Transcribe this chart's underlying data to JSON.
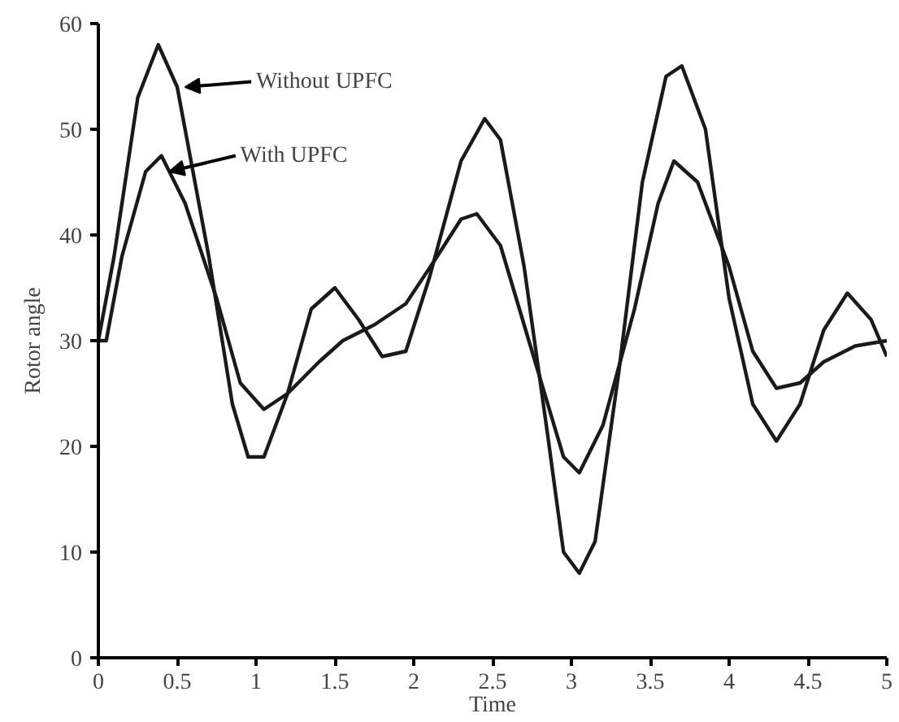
{
  "chart_data": {
    "type": "line",
    "xlabel": "Time",
    "ylabel": "Rotor angle",
    "xlim": [
      0,
      5
    ],
    "ylim": [
      0,
      60
    ],
    "xticks": [
      0,
      0.5,
      1,
      1.5,
      2,
      2.5,
      3,
      3.5,
      4,
      4.5,
      5
    ],
    "yticks": [
      0,
      10,
      20,
      30,
      40,
      50,
      60
    ],
    "line_style": "solid",
    "series": [
      {
        "color": "#1a1a1a",
        "x": [
          0,
          0.1,
          0.25,
          0.38,
          0.5,
          0.7,
          0.85,
          0.95,
          1.05,
          1.2,
          1.35,
          1.5,
          1.65,
          1.8,
          1.95,
          2.1,
          2.3,
          2.45,
          2.55,
          2.7,
          2.85,
          2.95,
          3.05,
          3.15,
          3.3,
          3.45,
          3.6,
          3.7,
          3.85,
          4.0,
          4.15,
          4.3,
          4.45,
          4.6,
          4.75,
          4.9,
          5
        ],
        "values": [
          30,
          38,
          53,
          58,
          54,
          38,
          24,
          19,
          19,
          25,
          33,
          35,
          32,
          28.5,
          29,
          36,
          47,
          51,
          49,
          37,
          21,
          10,
          8,
          11,
          27,
          45,
          55,
          56,
          50,
          34,
          24,
          20.5,
          24,
          31,
          34.5,
          32,
          28.5
        ]
      },
      {
        "color": "#1a1a1a",
        "x": [
          0,
          0.05,
          0.15,
          0.3,
          0.4,
          0.55,
          0.75,
          0.9,
          1.05,
          1.2,
          1.4,
          1.55,
          1.75,
          1.95,
          2.15,
          2.3,
          2.4,
          2.55,
          2.75,
          2.95,
          3.05,
          3.2,
          3.4,
          3.55,
          3.65,
          3.8,
          4.0,
          4.15,
          4.3,
          4.45,
          4.6,
          4.8,
          5
        ],
        "values": [
          30,
          30,
          38,
          46,
          47.5,
          43,
          34,
          26,
          23.5,
          25,
          28,
          30,
          31.5,
          33.5,
          38,
          41.5,
          42,
          39,
          29,
          19,
          17.5,
          22,
          33,
          43,
          47,
          45,
          37,
          29,
          25.5,
          26,
          28,
          29.5,
          30
        ]
      }
    ],
    "annotations": [
      {
        "text": "Without UPFC",
        "x": 0.55,
        "y": 54
      },
      {
        "text": "With UPFC",
        "x": 0.45,
        "y": 46
      }
    ]
  }
}
